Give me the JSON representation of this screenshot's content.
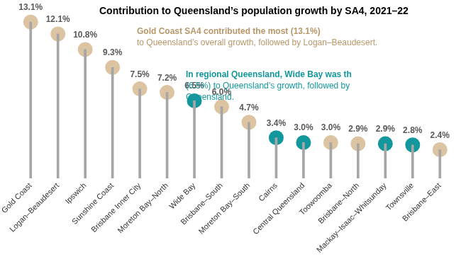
{
  "chart_data": {
    "type": "lollipop",
    "title": "Contribution to Queensland’s population growth by SA4, 2021–22",
    "annotations": [
      {
        "lines": [
          "Gold Coast SA4 contributed the most (13.1%)",
          "to Queensland’s overall growth, followed by Logan–Beaudesert."
        ],
        "color": "#b8976a"
      },
      {
        "lines": [
          "In regional Queensland, Wide Bay was th",
          "(6.5%) to Queensland’s growth, followed by",
          "Queensland."
        ],
        "color": "#12979c"
      }
    ],
    "categories": [
      "Gold Coast",
      "Logan–Beaudesert",
      "Ipswich",
      "Sunshine Coast",
      "Brisbane Inner City",
      "Moreton Bay–North",
      "Wide Bay",
      "Brisbane–South",
      "Moreton Bay–South",
      "Cairns",
      "Central Queensland",
      "Toowoomba",
      "Brisbane–North",
      "Mackay–Isaac–Whitsunday",
      "Townsville",
      "Brisbane–East"
    ],
    "values": [
      13.1,
      12.1,
      10.8,
      9.3,
      7.5,
      7.2,
      6.5,
      6.0,
      4.7,
      3.4,
      3.0,
      3.0,
      2.9,
      2.9,
      2.8,
      2.4
    ],
    "value_labels": [
      "13.1%",
      "12.1%",
      "10.8%",
      "9.3%",
      "7.5%",
      "7.2%",
      "6.5%",
      "6.0%",
      "4.7%",
      "3.4%",
      "3.0%",
      "3.0%",
      "2.9%",
      "2.9%",
      "2.8%",
      "2.4%"
    ],
    "colors": [
      "#dcc3a1",
      "#dcc3a1",
      "#dcc3a1",
      "#dcc3a1",
      "#dcc3a1",
      "#dcc3a1",
      "#12979c",
      "#dcc3a1",
      "#dcc3a1",
      "#12979c",
      "#12979c",
      "#dcc3a1",
      "#dcc3a1",
      "#12979c",
      "#12979c",
      "#dcc3a1"
    ],
    "ylim": [
      0,
      14
    ],
    "grid": false,
    "data_labels": true,
    "tick_labels": "x"
  }
}
